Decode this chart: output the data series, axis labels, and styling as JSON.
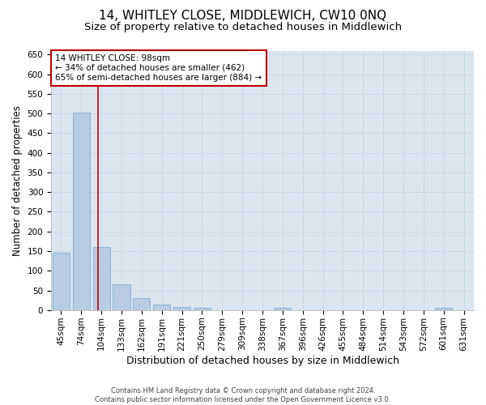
{
  "title": "14, WHITLEY CLOSE, MIDDLEWICH, CW10 0NQ",
  "subtitle": "Size of property relative to detached houses in Middlewich",
  "xlabel": "Distribution of detached houses by size in Middlewich",
  "ylabel": "Number of detached properties",
  "footer_line1": "Contains HM Land Registry data © Crown copyright and database right 2024.",
  "footer_line2": "Contains public sector information licensed under the Open Government Licence v3.0.",
  "annotation_line1": "14 WHITLEY CLOSE: 98sqm",
  "annotation_line2": "← 34% of detached houses are smaller (462)",
  "annotation_line3": "65% of semi-detached houses are larger (884) →",
  "categories": [
    "45sqm",
    "74sqm",
    "104sqm",
    "133sqm",
    "162sqm",
    "191sqm",
    "221sqm",
    "250sqm",
    "279sqm",
    "309sqm",
    "338sqm",
    "367sqm",
    "396sqm",
    "426sqm",
    "455sqm",
    "484sqm",
    "514sqm",
    "543sqm",
    "572sqm",
    "601sqm",
    "631sqm"
  ],
  "values": [
    145,
    503,
    160,
    65,
    30,
    13,
    7,
    5,
    0,
    0,
    0,
    5,
    0,
    0,
    0,
    0,
    0,
    0,
    0,
    5,
    0
  ],
  "bar_color": "#b8cce4",
  "bar_edge_color": "#7bafd4",
  "grid_color": "#c8d8e8",
  "background_color": "#dce6f0",
  "vline_color": "#c00000",
  "vline_x": 1.83,
  "ylim": [
    0,
    660
  ],
  "yticks": [
    0,
    50,
    100,
    150,
    200,
    250,
    300,
    350,
    400,
    450,
    500,
    550,
    600,
    650
  ],
  "title_fontsize": 11,
  "subtitle_fontsize": 9.5,
  "xlabel_fontsize": 9,
  "ylabel_fontsize": 8.5,
  "tick_fontsize": 7.5,
  "annotation_fontsize": 7.5,
  "footer_fontsize": 6
}
